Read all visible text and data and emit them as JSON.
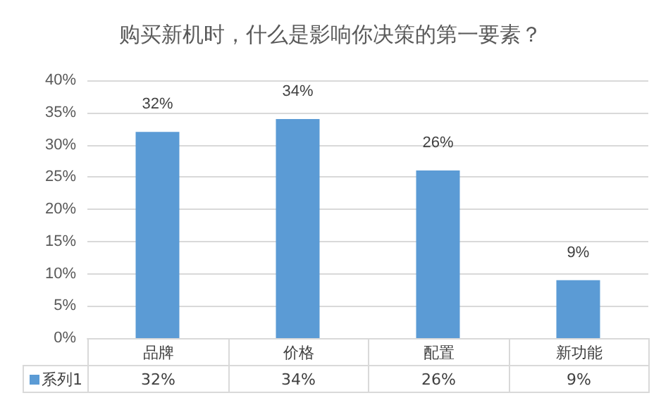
{
  "chart_data": {
    "type": "bar",
    "title": "购买新机时，什么是影响你决策的第一要素？",
    "categories": [
      "品牌",
      "价格",
      "配置",
      "新功能"
    ],
    "series": [
      {
        "name": "系列1",
        "color": "#5b9bd5",
        "values": [
          32,
          34,
          26,
          9
        ],
        "value_labels": [
          "32%",
          "34%",
          "26%",
          "9%"
        ]
      }
    ],
    "ylim": [
      0,
      40
    ],
    "yticks": [
      {
        "value": 0,
        "label": "0%"
      },
      {
        "value": 5,
        "label": "5%"
      },
      {
        "value": 10,
        "label": "10%"
      },
      {
        "value": 15,
        "label": "15%"
      },
      {
        "value": 20,
        "label": "20%"
      },
      {
        "value": 25,
        "label": "25%"
      },
      {
        "value": 30,
        "label": "30%"
      },
      {
        "value": 35,
        "label": "35%"
      },
      {
        "value": 40,
        "label": "40%"
      }
    ],
    "grid": "y"
  }
}
